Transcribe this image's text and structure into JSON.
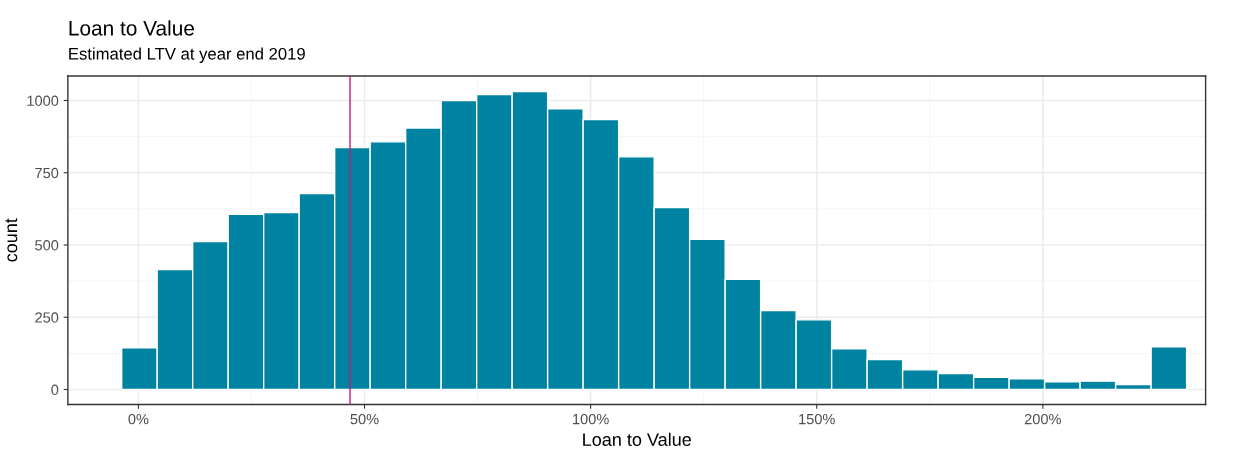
{
  "chart_data": {
    "type": "histogram",
    "title": "Loan to Value",
    "subtitle": "Estimated LTV at year end 2019",
    "xlabel": "Loan to Value",
    "ylabel": "count",
    "bins": [
      -3.7,
      4.15,
      12.0,
      19.85,
      27.7,
      35.55,
      43.4,
      51.25,
      59.1,
      66.95,
      74.8,
      82.65,
      90.5,
      98.35,
      106.2,
      114.05,
      121.9,
      129.75,
      137.6,
      145.45,
      153.3,
      161.15,
      169.0,
      176.85,
      184.7,
      192.55,
      200.4,
      208.25,
      216.1,
      223.95,
      231.8
    ],
    "values": [
      144,
      415,
      512,
      606,
      612,
      678,
      837,
      857,
      905,
      1000,
      1021,
      1031,
      971,
      934,
      805,
      630,
      520,
      381,
      273,
      241,
      141,
      104,
      68,
      55,
      42,
      37,
      27,
      29,
      17,
      148
    ],
    "color": "#0083a0",
    "xlim": [
      -15.6,
      236
    ],
    "ylim": [
      -52,
      1085
    ],
    "xticks": [
      {
        "value": 0,
        "label": "0%"
      },
      {
        "value": 50,
        "label": "50%"
      },
      {
        "value": 100,
        "label": "100%"
      },
      {
        "value": 150,
        "label": "150%"
      },
      {
        "value": 200,
        "label": "200%"
      }
    ],
    "yticks": [
      0,
      250,
      500,
      750,
      1000
    ],
    "ref_lines": [
      {
        "axis": "x",
        "value": 46.8,
        "color": "#c51b7d"
      }
    ],
    "grid": true
  }
}
